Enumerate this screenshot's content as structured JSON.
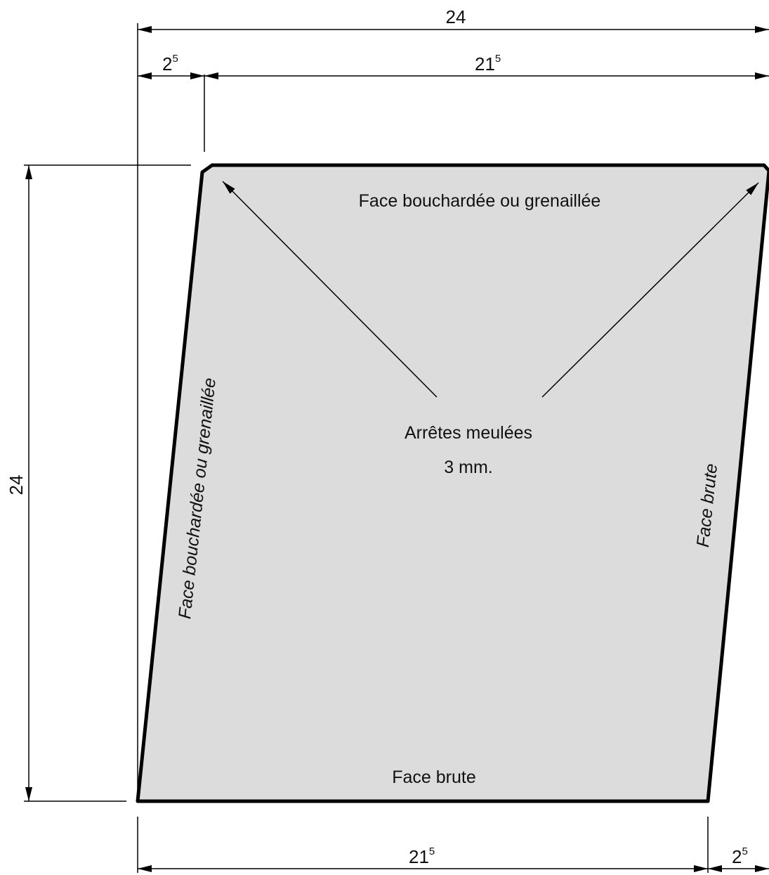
{
  "colors": {
    "stone_fill": "#dcdcdc",
    "outline": "#000000",
    "background": "#ffffff"
  },
  "dimensions": {
    "top_overall": "24",
    "top_left_offset": {
      "base": "2",
      "sup": "5"
    },
    "top_main": {
      "base": "21",
      "sup": "5"
    },
    "left_height": "24",
    "bottom_main": {
      "base": "21",
      "sup": "5"
    },
    "bottom_right_offset": {
      "base": "2",
      "sup": "5"
    }
  },
  "faces": {
    "top": "Face bouchardée ou grenaillée",
    "left": "Face bouchardée ou grenaillée",
    "right": "Face brute",
    "bottom": "Face brute"
  },
  "note": {
    "line1": "Arrêtes meulées",
    "line2": "3 mm."
  }
}
